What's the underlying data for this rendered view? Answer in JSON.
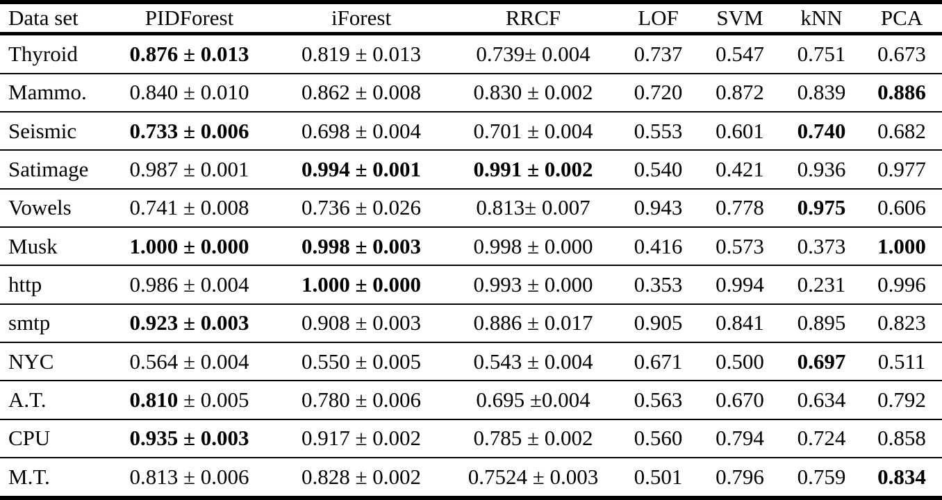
{
  "table": {
    "columns": [
      "Data set",
      "PIDForest",
      "iForest",
      "RRCF",
      "LOF",
      "SVM",
      "kNN",
      "PCA"
    ],
    "rows": [
      {
        "dataset": "Thyroid",
        "cells": [
          [
            {
              "t": "0.876 ± 0.013",
              "b": true
            }
          ],
          [
            {
              "t": "0.819 ± 0.013",
              "b": false
            }
          ],
          [
            {
              "t": "0.739± 0.004",
              "b": false
            }
          ],
          [
            {
              "t": "0.737",
              "b": false
            }
          ],
          [
            {
              "t": "0.547",
              "b": false
            }
          ],
          [
            {
              "t": "0.751",
              "b": false
            }
          ],
          [
            {
              "t": "0.673",
              "b": false
            }
          ]
        ]
      },
      {
        "dataset": "Mammo.",
        "cells": [
          [
            {
              "t": "0.840 ± 0.010",
              "b": false
            }
          ],
          [
            {
              "t": "0.862 ± 0.008",
              "b": false
            }
          ],
          [
            {
              "t": "0.830 ± 0.002",
              "b": false
            }
          ],
          [
            {
              "t": "0.720",
              "b": false
            }
          ],
          [
            {
              "t": "0.872",
              "b": false
            }
          ],
          [
            {
              "t": "0.839",
              "b": false
            }
          ],
          [
            {
              "t": "0.886",
              "b": true
            }
          ]
        ]
      },
      {
        "dataset": "Seismic",
        "cells": [
          [
            {
              "t": "0.733 ± 0.006",
              "b": true
            }
          ],
          [
            {
              "t": "0.698 ± 0.004",
              "b": false
            }
          ],
          [
            {
              "t": "0.701 ± 0.004",
              "b": false
            }
          ],
          [
            {
              "t": "0.553",
              "b": false
            }
          ],
          [
            {
              "t": "0.601",
              "b": false
            }
          ],
          [
            {
              "t": "0.740",
              "b": true
            }
          ],
          [
            {
              "t": "0.682",
              "b": false
            }
          ]
        ]
      },
      {
        "dataset": "Satimage",
        "cells": [
          [
            {
              "t": "0.987 ± 0.001",
              "b": false
            }
          ],
          [
            {
              "t": "0.994 ± 0.001",
              "b": true
            }
          ],
          [
            {
              "t": "0.991 ± 0.002",
              "b": true
            }
          ],
          [
            {
              "t": "0.540",
              "b": false
            }
          ],
          [
            {
              "t": "0.421",
              "b": false
            }
          ],
          [
            {
              "t": "0.936",
              "b": false
            }
          ],
          [
            {
              "t": "0.977",
              "b": false
            }
          ]
        ]
      },
      {
        "dataset": "Vowels",
        "cells": [
          [
            {
              "t": "0.741 ± 0.008",
              "b": false
            }
          ],
          [
            {
              "t": "0.736 ± 0.026",
              "b": false
            }
          ],
          [
            {
              "t": "0.813± 0.007",
              "b": false
            }
          ],
          [
            {
              "t": "0.943",
              "b": false
            }
          ],
          [
            {
              "t": "0.778",
              "b": false
            }
          ],
          [
            {
              "t": "0.975",
              "b": true
            }
          ],
          [
            {
              "t": "0.606",
              "b": false
            }
          ]
        ]
      },
      {
        "dataset": "Musk",
        "cells": [
          [
            {
              "t": "1.000 ± 0.000",
              "b": true
            }
          ],
          [
            {
              "t": "0.998 ± 0.003",
              "b": true
            }
          ],
          [
            {
              "t": "0.998 ± 0.000",
              "b": false
            }
          ],
          [
            {
              "t": "0.416",
              "b": false
            }
          ],
          [
            {
              "t": "0.573",
              "b": false
            }
          ],
          [
            {
              "t": "0.373",
              "b": false
            }
          ],
          [
            {
              "t": "1.000",
              "b": true
            }
          ]
        ]
      },
      {
        "dataset": "http",
        "cells": [
          [
            {
              "t": "0.986 ± 0.004",
              "b": false
            }
          ],
          [
            {
              "t": "1.000 ± 0.000",
              "b": true
            }
          ],
          [
            {
              "t": "0.993 ± 0.000",
              "b": false
            }
          ],
          [
            {
              "t": "0.353",
              "b": false
            }
          ],
          [
            {
              "t": "0.994",
              "b": false
            }
          ],
          [
            {
              "t": "0.231",
              "b": false
            }
          ],
          [
            {
              "t": "0.996",
              "b": false
            }
          ]
        ]
      },
      {
        "dataset": "smtp",
        "cells": [
          [
            {
              "t": "0.923 ± 0.003",
              "b": true
            }
          ],
          [
            {
              "t": "0.908 ± 0.003",
              "b": false
            }
          ],
          [
            {
              "t": "0.886 ± 0.017",
              "b": false
            }
          ],
          [
            {
              "t": "0.905",
              "b": false
            }
          ],
          [
            {
              "t": "0.841",
              "b": false
            }
          ],
          [
            {
              "t": "0.895",
              "b": false
            }
          ],
          [
            {
              "t": "0.823",
              "b": false
            }
          ]
        ]
      },
      {
        "dataset": "NYC",
        "cells": [
          [
            {
              "t": "0.564 ± 0.004",
              "b": false
            }
          ],
          [
            {
              "t": "0.550 ± 0.005",
              "b": false
            }
          ],
          [
            {
              "t": "0.543 ± 0.004",
              "b": false
            }
          ],
          [
            {
              "t": "0.671",
              "b": false
            }
          ],
          [
            {
              "t": "0.500",
              "b": false
            }
          ],
          [
            {
              "t": "0.697",
              "b": true
            }
          ],
          [
            {
              "t": "0.511",
              "b": false
            }
          ]
        ]
      },
      {
        "dataset": "A.T.",
        "cells": [
          [
            {
              "t": "0.810",
              "b": true
            },
            {
              "t": " ± 0.005",
              "b": false
            }
          ],
          [
            {
              "t": "0.780 ± 0.006",
              "b": false
            }
          ],
          [
            {
              "t": "0.695 ±0.004",
              "b": false
            }
          ],
          [
            {
              "t": "0.563",
              "b": false
            }
          ],
          [
            {
              "t": "0.670",
              "b": false
            }
          ],
          [
            {
              "t": "0.634",
              "b": false
            }
          ],
          [
            {
              "t": "0.792",
              "b": false
            }
          ]
        ]
      },
      {
        "dataset": "CPU",
        "cells": [
          [
            {
              "t": "0.935 ± 0.003",
              "b": true
            }
          ],
          [
            {
              "t": "0.917 ± 0.002",
              "b": false
            }
          ],
          [
            {
              "t": "0.785 ± 0.002",
              "b": false
            }
          ],
          [
            {
              "t": "0.560",
              "b": false
            }
          ],
          [
            {
              "t": "0.794",
              "b": false
            }
          ],
          [
            {
              "t": "0.724",
              "b": false
            }
          ],
          [
            {
              "t": "0.858",
              "b": false
            }
          ]
        ]
      },
      {
        "dataset": "M.T.",
        "cells": [
          [
            {
              "t": "0.813 ± 0.006",
              "b": false
            }
          ],
          [
            {
              "t": "0.828 ± 0.002",
              "b": false
            }
          ],
          [
            {
              "t": "0.7524 ± 0.003",
              "b": false
            }
          ],
          [
            {
              "t": "0.501",
              "b": false
            }
          ],
          [
            {
              "t": "0.796",
              "b": false
            }
          ],
          [
            {
              "t": "0.759",
              "b": false
            }
          ],
          [
            {
              "t": "0.834",
              "b": true
            }
          ]
        ]
      }
    ]
  }
}
